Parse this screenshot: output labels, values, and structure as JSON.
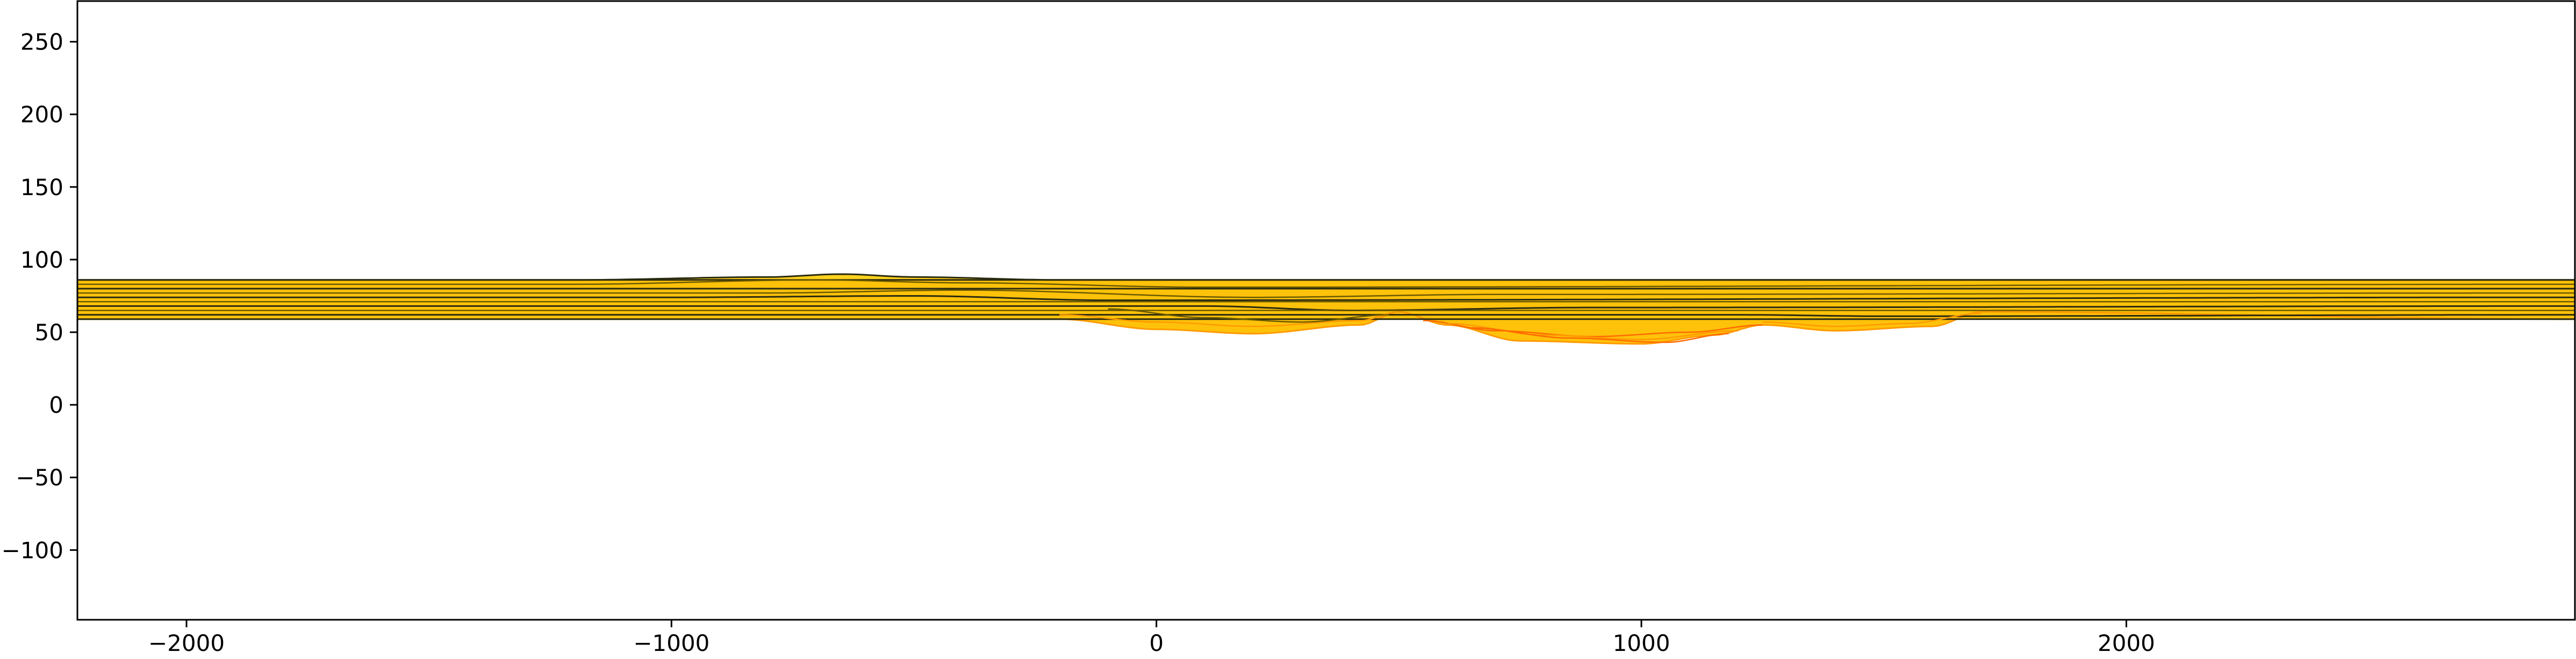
{
  "chart_data": {
    "type": "area",
    "title": "",
    "xlabel": "",
    "ylabel": "",
    "xlim": [
      -2225,
      2925
    ],
    "ylim": [
      -148,
      278
    ],
    "grid": false,
    "legend": "none",
    "x_ticks": [
      -2000,
      -1000,
      0,
      1000,
      2000
    ],
    "x_tick_labels": [
      "−2000",
      "−1000",
      "0",
      "1000",
      "2000"
    ],
    "y_ticks": [
      -100,
      -50,
      0,
      50,
      100,
      150,
      200,
      250
    ],
    "y_tick_labels": [
      "−100",
      "−50",
      "0",
      "50",
      "100",
      "150",
      "200",
      "250"
    ],
    "colors": {
      "fill_main": "#ffc20a",
      "fill_light": "#ffd21e",
      "fill_orange": "#ff9a00",
      "fill_red": "#ff6a00",
      "line_dark": "#2b2b10",
      "line_olive": "#6b5a00"
    },
    "band": {
      "top": 86,
      "bottom": 59
    },
    "basin": {
      "x": [
        -2225,
        -200,
        0,
        200,
        420,
        500,
        600,
        750,
        1000,
        1150,
        1250,
        1400,
        1600,
        1700,
        2925
      ],
      "y": [
        59,
        59,
        52,
        49,
        55,
        64,
        55,
        44,
        42,
        48,
        55,
        51,
        54,
        64,
        59
      ]
    },
    "bump": {
      "x": [
        -2225,
        -1200,
        -800,
        -650,
        -500,
        -200,
        200,
        2925
      ],
      "y": [
        86,
        86,
        88,
        90,
        88,
        86,
        86,
        86
      ]
    },
    "layers": [
      {
        "x": [
          -2225,
          2925
        ],
        "y": [
          86,
          86
        ],
        "color": "#2b2b10"
      },
      {
        "x": [
          -2225,
          -1200,
          -700,
          -400,
          100,
          2925
        ],
        "y": [
          83,
          83,
          86,
          84,
          81,
          83
        ],
        "color": "#6b5a00"
      },
      {
        "x": [
          -2225,
          2925
        ],
        "y": [
          80,
          80
        ],
        "color": "#2b2b10"
      },
      {
        "x": [
          -2225,
          -800,
          -400,
          200,
          700,
          2925
        ],
        "y": [
          77,
          77,
          79,
          74,
          76,
          77
        ],
        "color": "#6b5a00"
      },
      {
        "x": [
          -2225,
          -1000,
          -500,
          -100,
          2925
        ],
        "y": [
          74,
          74,
          75,
          72,
          74
        ],
        "color": "#2b2b10"
      },
      {
        "x": [
          -2225,
          2925
        ],
        "y": [
          71,
          71
        ],
        "color": "#6b5a00"
      },
      {
        "x": [
          -2225,
          100,
          400,
          900,
          2925
        ],
        "y": [
          68,
          68,
          65,
          67,
          68
        ],
        "color": "#2b2b10"
      },
      {
        "x": [
          -2225,
          2925
        ],
        "y": [
          65,
          65
        ],
        "color": "#6b5a00"
      },
      {
        "x": [
          -2225,
          1200,
          1500,
          2925
        ],
        "y": [
          62,
          62,
          61,
          62
        ],
        "color": "#2b2b10"
      },
      {
        "x": [
          -2225,
          2925
        ],
        "y": [
          59,
          59
        ],
        "color": "#2b2b10"
      },
      {
        "x": [
          -200,
          0,
          200,
          420,
          500
        ],
        "y": [
          62,
          57,
          54,
          58,
          64
        ],
        "color": "#ff9a00"
      },
      {
        "x": [
          -100,
          100,
          300,
          480
        ],
        "y": [
          66,
          60,
          57,
          62
        ],
        "color": "#6b5a00"
      },
      {
        "x": [
          550,
          700,
          900,
          1100,
          1250
        ],
        "y": [
          58,
          51,
          47,
          50,
          55
        ],
        "color": "#ff6a00"
      },
      {
        "x": [
          600,
          800,
          1000,
          1200
        ],
        "y": [
          56,
          48,
          45,
          51
        ],
        "color": "#ff9a00"
      },
      {
        "x": [
          650,
          850,
          1050,
          1180
        ],
        "y": [
          53,
          46,
          43,
          49
        ],
        "color": "#ff6a00"
      },
      {
        "x": [
          1250,
          1400,
          1550,
          1700
        ],
        "y": [
          57,
          54,
          56,
          63
        ],
        "color": "#ff9a00"
      }
    ]
  }
}
